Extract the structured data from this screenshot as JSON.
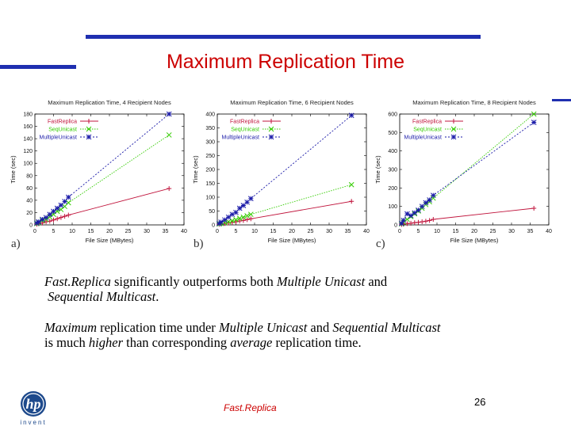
{
  "slide": {
    "title": "Maximum Replication Time",
    "footer": "Fast.Replica",
    "page_number": "26",
    "logo_text": "invent",
    "panel_labels": [
      "a)",
      "b)",
      "c)"
    ],
    "para1": {
      "s1": "Fast.Replica",
      "s2": " significantly outperforms both ",
      "s3": "Multiple Unicast",
      "s4": " and",
      "s5": "Sequential Multicast",
      "s6": "."
    },
    "para2": {
      "s1": "Maximum",
      "s2": " replication time  under ",
      "s3": "Multiple Unicast",
      "s4": " and ",
      "s5": "Sequential Multicast",
      "s6": "is  much ",
      "s7": "higher",
      "s8": "  than corresponding ",
      "s9": "average",
      "s10": "  replication time."
    },
    "colors": {
      "accent_bar": "#1f2fb0",
      "title": "#cc0000"
    }
  },
  "chart_data": [
    {
      "type": "line",
      "title": "Maximum Replication Time, 4 Recipient Nodes",
      "xlabel": "File Size (MBytes)",
      "ylabel": "Time (sec)",
      "xlim": [
        0,
        40
      ],
      "ylim": [
        0,
        180
      ],
      "xticks": [
        0,
        5,
        10,
        15,
        20,
        25,
        30,
        35,
        40
      ],
      "yticks": [
        0,
        20,
        40,
        60,
        80,
        100,
        120,
        140,
        160,
        180
      ],
      "legend": "top-left",
      "series": [
        {
          "name": "FastReplica",
          "color": "#c0143c",
          "marker": "+",
          "x": [
            0.5,
            1,
            2,
            3,
            4,
            5,
            6,
            7,
            8,
            9,
            36
          ],
          "y": [
            1,
            2,
            3,
            5,
            6,
            8,
            10,
            12,
            14,
            16,
            59
          ]
        },
        {
          "name": "SeqUnicast",
          "color": "#33cc00",
          "marker": "x",
          "x": [
            0.5,
            1,
            2,
            3,
            4,
            5,
            6,
            7,
            8,
            9,
            36
          ],
          "y": [
            2,
            4,
            7,
            9,
            13,
            17,
            22,
            25,
            30,
            36,
            146
          ]
        },
        {
          "name": "MultipleUnicast",
          "color": "#1a1aa8",
          "marker": "*",
          "x": [
            0.5,
            1,
            2,
            3,
            4,
            5,
            6,
            7,
            8,
            9,
            36
          ],
          "y": [
            3,
            5,
            9,
            12,
            17,
            22,
            27,
            32,
            38,
            45,
            180
          ]
        }
      ]
    },
    {
      "type": "line",
      "title": "Maximum Replication Time, 6 Recipient Nodes",
      "xlabel": "File Size (MBytes)",
      "ylabel": "Time (sec)",
      "xlim": [
        0,
        40
      ],
      "ylim": [
        0,
        400
      ],
      "xticks": [
        0,
        5,
        10,
        15,
        20,
        25,
        30,
        35,
        40
      ],
      "yticks": [
        0,
        50,
        100,
        150,
        200,
        250,
        300,
        350,
        400
      ],
      "legend": "top-left",
      "series": [
        {
          "name": "FastReplica",
          "color": "#c0143c",
          "marker": "+",
          "x": [
            0.5,
            1,
            2,
            3,
            4,
            5,
            6,
            7,
            8,
            9,
            36
          ],
          "y": [
            2,
            3,
            5,
            7,
            9,
            11,
            14,
            16,
            19,
            22,
            85
          ]
        },
        {
          "name": "SeqUnicast",
          "color": "#33cc00",
          "marker": "x",
          "x": [
            0.5,
            1,
            2,
            3,
            4,
            5,
            6,
            7,
            8,
            9,
            36
          ],
          "y": [
            3,
            5,
            8,
            11,
            15,
            19,
            24,
            28,
            33,
            38,
            145
          ]
        },
        {
          "name": "MultipleUnicast",
          "color": "#1a1aa8",
          "marker": "*",
          "x": [
            0.5,
            1,
            2,
            3,
            4,
            5,
            6,
            7,
            8,
            9,
            36
          ],
          "y": [
            5,
            10,
            18,
            28,
            38,
            45,
            60,
            70,
            82,
            95,
            395
          ]
        }
      ]
    },
    {
      "type": "line",
      "title": "Maximum Replication Time, 8 Recipient Nodes",
      "xlabel": "File Size (MBytes)",
      "ylabel": "Time (sec)",
      "xlim": [
        0,
        40
      ],
      "ylim": [
        0,
        600
      ],
      "xticks": [
        0,
        5,
        10,
        15,
        20,
        25,
        30,
        35,
        40
      ],
      "yticks": [
        0,
        100,
        200,
        300,
        400,
        500,
        600
      ],
      "legend": "top-left",
      "series": [
        {
          "name": "FastReplica",
          "color": "#c0143c",
          "marker": "+",
          "x": [
            0.5,
            1,
            2,
            3,
            4,
            5,
            6,
            7,
            8,
            9,
            36
          ],
          "y": [
            2,
            4,
            7,
            9,
            12,
            14,
            17,
            20,
            24,
            30,
            90
          ]
        },
        {
          "name": "SeqUnicast",
          "color": "#33cc00",
          "marker": "x",
          "x": [
            0.5,
            1,
            2,
            3,
            4,
            5,
            6,
            7,
            8,
            9,
            36
          ],
          "y": [
            5,
            15,
            30,
            45,
            60,
            75,
            90,
            110,
            125,
            145,
            600
          ]
        },
        {
          "name": "MultipleUnicast",
          "color": "#1a1aa8",
          "marker": "*",
          "x": [
            0.5,
            1,
            2,
            3,
            4,
            5,
            6,
            7,
            8,
            9,
            36
          ],
          "y": [
            8,
            25,
            60,
            50,
            65,
            80,
            100,
            120,
            135,
            160,
            555
          ]
        }
      ]
    }
  ]
}
